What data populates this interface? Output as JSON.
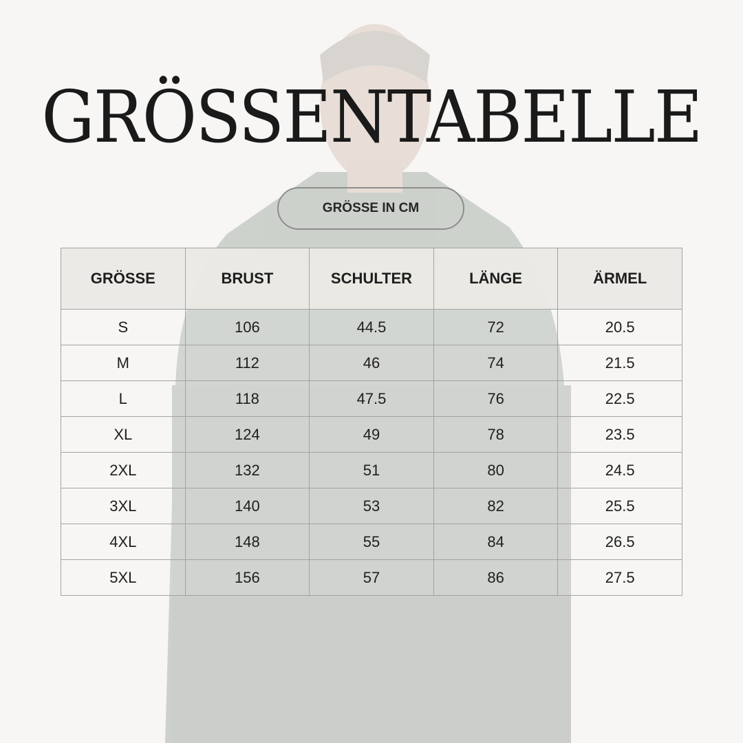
{
  "title": "GRÖSSENTABELLE",
  "unit_badge": "GRÖSSE IN CM",
  "colors": {
    "background": "#f7f6f4",
    "header": "#ebe9e5",
    "border": "#a3a3a1",
    "text": "#1e1e1e"
  },
  "table": {
    "headers": [
      "GRÖSSE",
      "BRUST",
      "SCHULTER",
      "LÄNGE",
      "ÄRMEL"
    ],
    "rows": [
      [
        "S",
        "106",
        "44.5",
        "72",
        "20.5"
      ],
      [
        "M",
        "112",
        "46",
        "74",
        "21.5"
      ],
      [
        "L",
        "118",
        "47.5",
        "76",
        "22.5"
      ],
      [
        "XL",
        "124",
        "49",
        "78",
        "23.5"
      ],
      [
        "2XL",
        "132",
        "51",
        "80",
        "24.5"
      ],
      [
        "3XL",
        "140",
        "53",
        "82",
        "25.5"
      ],
      [
        "4XL",
        "148",
        "55",
        "84",
        "26.5"
      ],
      [
        "5XL",
        "156",
        "57",
        "86",
        "27.5"
      ]
    ]
  }
}
